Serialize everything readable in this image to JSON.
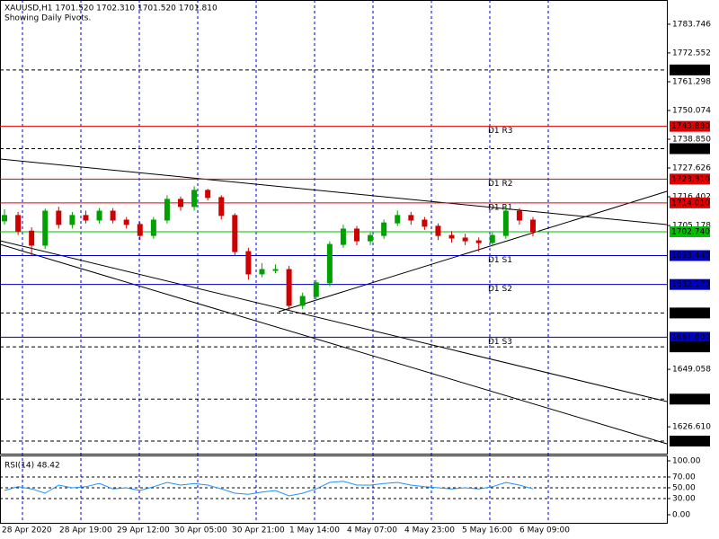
{
  "chart_data": {
    "type": "candlestick",
    "title": "XAUUSD,H1  1701.520 1702.310 1701.520 1701.810",
    "subtitle": "Showing Daily Pivots.",
    "open": [
      1707.0,
      1709.1,
      1703.0,
      1697.5,
      1710.8,
      1705.6,
      1709.1,
      1707.3,
      1710.8,
      1707.3,
      1705.6,
      1701.3,
      1707.3,
      1715.4,
      1712.6,
      1718.9,
      1716.1,
      1709.1,
      1695.0,
      1686.3,
      1688.0,
      1688.0,
      1674.0,
      1677.5,
      1682.8,
      1697.8,
      1703.8,
      1699.2,
      1701.3,
      1706.2,
      1709.1,
      1707.3,
      1704.9,
      1701.3,
      1700.3,
      1699.2,
      1698.5,
      1701.3,
      1710.8,
      1707.3
    ],
    "high": [
      1711.5,
      1710.5,
      1704.5,
      1711.8,
      1712.5,
      1710.5,
      1711.0,
      1712.0,
      1712.0,
      1708.5,
      1706.5,
      1708.5,
      1717.0,
      1716.5,
      1720.5,
      1719.5,
      1717.0,
      1710.0,
      1696.5,
      1690.5,
      1690.0,
      1689.5,
      1679.0,
      1684.0,
      1699.0,
      1705.5,
      1705.0,
      1702.5,
      1707.5,
      1711.0,
      1710.5,
      1708.5,
      1706.0,
      1703.0,
      1702.0,
      1700.5,
      1702.5,
      1713.0,
      1712.0,
      1708.5
    ],
    "low": [
      1705.5,
      1701.5,
      1693.5,
      1696.0,
      1704.0,
      1704.0,
      1706.0,
      1706.0,
      1706.0,
      1704.0,
      1699.5,
      1700.0,
      1706.0,
      1711.0,
      1711.0,
      1715.0,
      1707.5,
      1693.5,
      1684.0,
      1685.0,
      1686.5,
      1672.0,
      1672.5,
      1676.0,
      1681.5,
      1696.5,
      1697.5,
      1697.5,
      1700.0,
      1705.0,
      1705.5,
      1703.5,
      1699.5,
      1698.5,
      1697.5,
      1695.0,
      1697.0,
      1700.0,
      1705.5,
      1701.0
    ],
    "close": [
      1709.1,
      1703.0,
      1697.5,
      1710.8,
      1705.6,
      1709.1,
      1707.3,
      1710.8,
      1707.3,
      1705.6,
      1701.3,
      1707.3,
      1715.4,
      1712.6,
      1718.9,
      1716.1,
      1709.1,
      1695.0,
      1686.3,
      1688.0,
      1688.0,
      1674.0,
      1677.5,
      1682.8,
      1697.8,
      1703.8,
      1699.2,
      1701.3,
      1706.2,
      1709.1,
      1707.3,
      1704.9,
      1701.3,
      1700.3,
      1699.2,
      1698.5,
      1701.3,
      1710.8,
      1707.3,
      1702.7
    ],
    "up_color": "#00a000",
    "down_color": "#d00000",
    "ylim": [
      1616.14,
      1793.2
    ],
    "yticks": [
      1783.746,
      1772.552,
      1761.298,
      1750.074,
      {
        "value": 1738.85,
        "label": "1738.850"
      },
      1727.626,
      1716.402,
      1705.178,
      1649.058,
      {
        "value": 1626.61,
        "label": "1626.610"
      }
    ],
    "levels": [
      {
        "value": 1765.906,
        "color": "#000000",
        "dashed": true
      },
      {
        "value": 1743.88,
        "label": "1743.880",
        "color": "#e00000",
        "name": "D1 R3"
      },
      {
        "value": 1735.179,
        "color": "#000000",
        "dashed": true
      },
      {
        "value": 1723.31,
        "label": "1723.310",
        "color": "#e00000",
        "name": "D1 R2"
      },
      {
        "value": 1714.01,
        "label": "1714.010",
        "color": "#e00000",
        "name": "D1 R1"
      },
      {
        "value": 1702.74,
        "label": "1702.740",
        "color": "#00c000"
      },
      {
        "value": 1693.44,
        "label": "1693.440",
        "color": "#0000c0",
        "name": "D1 S1"
      },
      {
        "value": 1682.17,
        "label": "1682.170",
        "color": "#0000c0",
        "name": "D1 S2"
      },
      {
        "value": 1671.05,
        "label": "1671.050",
        "color": "#000000",
        "dashed": true
      },
      {
        "value": 1661.6,
        "label": "1661.600",
        "color": "#0000c0",
        "name": "D1 S3"
      },
      {
        "value": 1657.822,
        "color": "#000000",
        "dashed": true
      },
      {
        "value": 1637.425,
        "color": "#000000",
        "dashed": true
      },
      {
        "value": 1621.052,
        "color": "#000000",
        "dashed": true
      }
    ],
    "time_labels": [
      "28 Apr 2020",
      "28 Apr 19:00",
      "29 Apr 12:00",
      "30 Apr 05:00",
      "30 Apr 21:00",
      "1 May 14:00",
      "4 May 07:00",
      "4 May 23:00",
      "5 May 16:00",
      "6 May 09:00"
    ],
    "rsi": {
      "title": "RSI(14) 48.42",
      "color": "#1e90ff",
      "values": [
        45,
        52,
        48,
        40,
        55,
        50,
        52,
        58,
        48,
        50,
        45,
        52,
        60,
        55,
        58,
        55,
        48,
        40,
        38,
        42,
        45,
        35,
        40,
        48,
        60,
        62,
        55,
        55,
        58,
        60,
        55,
        52,
        50,
        48,
        50,
        48,
        52,
        60,
        55,
        48
      ],
      "ylim": [
        -15,
        110
      ],
      "yticks": [
        {
          "value": 100,
          "label": "100.00"
        },
        {
          "value": 70,
          "label": "70.00"
        },
        {
          "value": 50,
          "label": "50.00"
        },
        {
          "value": 30,
          "label": "30.00"
        },
        {
          "value": 0,
          "label": "0.00"
        }
      ],
      "levels": [
        70,
        50,
        30
      ]
    }
  }
}
